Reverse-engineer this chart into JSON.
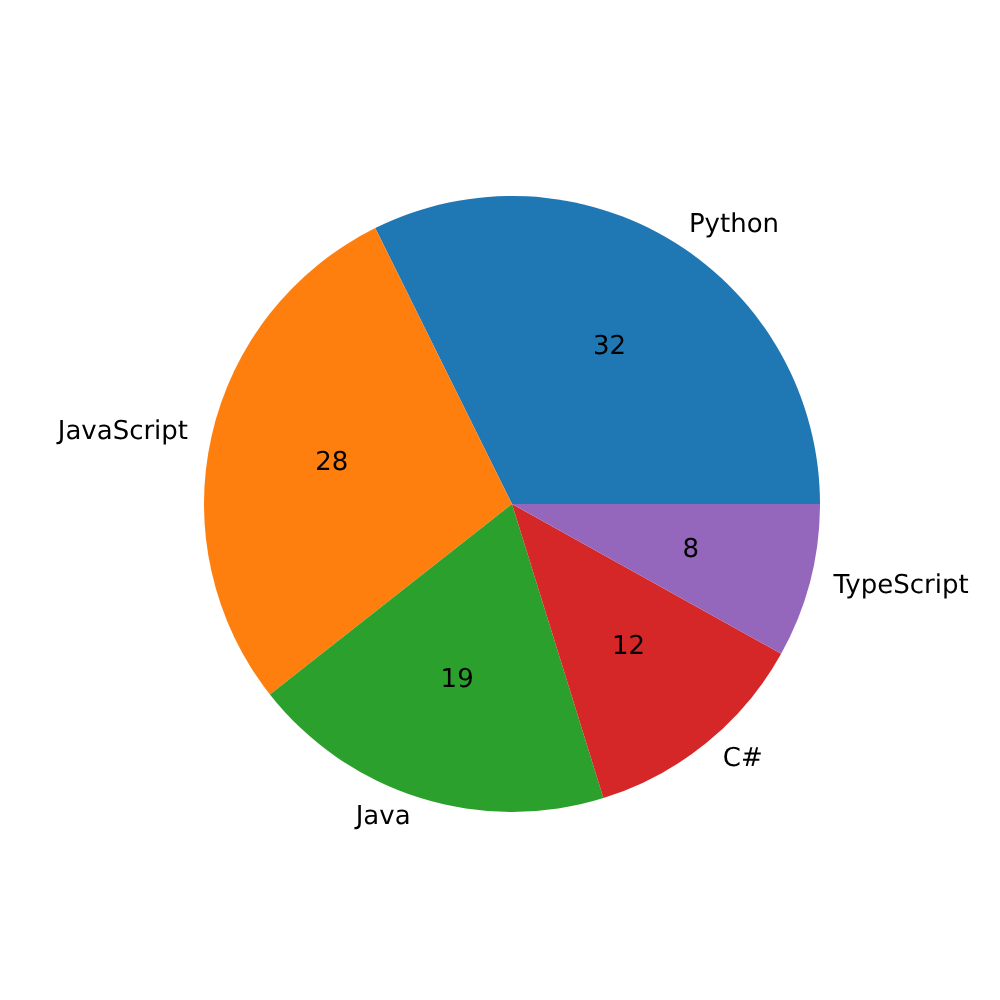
{
  "chart_data": {
    "type": "pie",
    "categories": [
      "Python",
      "JavaScript",
      "Java",
      "C#",
      "TypeScript"
    ],
    "values": [
      32,
      28,
      19,
      12,
      8
    ],
    "colors": [
      "#1f77b4",
      "#ff7f0e",
      "#2ca02c",
      "#d62728",
      "#9467bd"
    ],
    "data_labels": true
  }
}
